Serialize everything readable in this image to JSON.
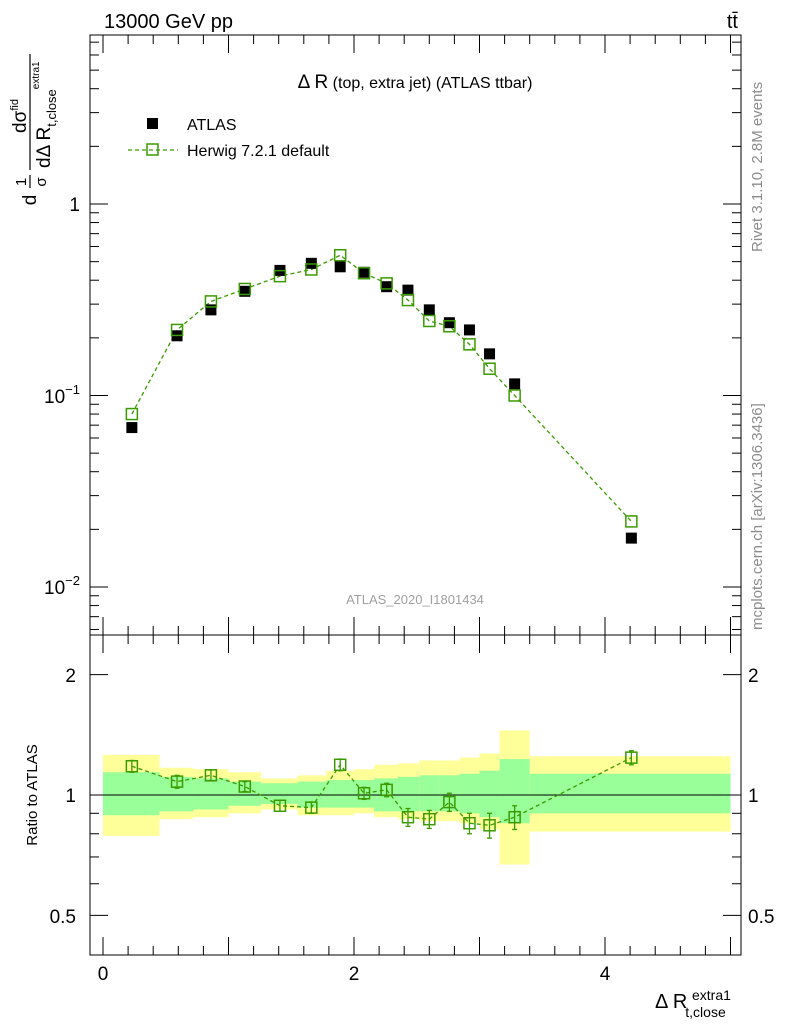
{
  "header": {
    "energy_label": "13000 GeV pp",
    "process_label": "tt̄"
  },
  "side_labels": {
    "rivet": "Rivet 3.1.10,  2.8M events",
    "source": "mcplots.cern.ch [arXiv:1306.3436]"
  },
  "main_plot": {
    "title_prefix": "Δ R",
    "title_rest": " (top, extra jet) (ATLAS ttbar)",
    "ylabel_numerator": "dσ",
    "ylabel_numerator_sup": "fid",
    "ylabel_denominator": "dΔ R",
    "ylabel_denominator_sub": "t,close",
    "ylabel_denominator_sup": "extra1",
    "ylabel_prefix_num": "1",
    "ylabel_prefix_den": "σ",
    "ylabel_d1": "d",
    "watermark": "ATLAS_2020_I1801434",
    "y_tick_1": "1",
    "y_tick_01_base": "10",
    "y_tick_01_exp": "−1",
    "y_tick_001_base": "10",
    "y_tick_001_exp": "−2"
  },
  "ratio_plot": {
    "ylabel": "Ratio to ATLAS",
    "y_ticks": [
      "0.5",
      "1",
      "2"
    ]
  },
  "x_axis": {
    "label_main": "Δ R",
    "label_sub": "t,close",
    "label_sup": "extra1",
    "ticks": [
      "0",
      "2",
      "4"
    ]
  },
  "legend": {
    "data_label": "ATLAS",
    "mc_label": "Herwig 7.2.1 default"
  },
  "colors": {
    "data": "#000000",
    "mc": "#3a9a00",
    "band_inner": "#99ff99",
    "band_outer": "#ffff99"
  },
  "chart_data": {
    "type": "scatter",
    "log_y": true,
    "xlim": [
      -0.2,
      5.1
    ],
    "ylim": [
      0.006,
      8
    ],
    "ratio_ylim": [
      0.4,
      2.5
    ],
    "x": [
      0.23,
      0.59,
      0.86,
      1.13,
      1.41,
      1.66,
      1.89,
      2.08,
      2.26,
      2.43,
      2.6,
      2.76,
      2.92,
      3.08,
      3.28,
      4.21
    ],
    "bin_edges": [
      0.0,
      0.45,
      0.72,
      1.0,
      1.26,
      1.55,
      1.78,
      2.0,
      2.16,
      2.35,
      2.52,
      2.68,
      2.84,
      3.0,
      3.16,
      3.4,
      5.0
    ],
    "series": [
      {
        "name": "ATLAS",
        "y": [
          0.068,
          0.205,
          0.28,
          0.35,
          0.45,
          0.49,
          0.47,
          0.44,
          0.37,
          0.355,
          0.28,
          0.24,
          0.22,
          0.165,
          0.115,
          0.018
        ]
      },
      {
        "name": "Herwig 7.2.1 default",
        "y": [
          0.08,
          0.22,
          0.31,
          0.36,
          0.42,
          0.455,
          0.54,
          0.435,
          0.385,
          0.315,
          0.245,
          0.23,
          0.185,
          0.138,
          0.1,
          0.022
        ],
        "ratio": [
          1.18,
          1.08,
          1.12,
          1.05,
          0.94,
          0.93,
          1.19,
          1.01,
          1.03,
          0.88,
          0.87,
          0.96,
          0.85,
          0.84,
          0.88,
          1.24
        ],
        "ratio_err": [
          0.04,
          0.04,
          0.035,
          0.03,
          0.03,
          0.03,
          0.04,
          0.035,
          0.04,
          0.045,
          0.045,
          0.05,
          0.05,
          0.06,
          0.06,
          0.05
        ]
      }
    ],
    "ratio_band_inner": [
      [
        0.89,
        1.14
      ],
      [
        0.91,
        1.11
      ],
      [
        0.92,
        1.1
      ],
      [
        0.94,
        1.08
      ],
      [
        0.95,
        1.07
      ],
      [
        0.93,
        1.08
      ],
      [
        0.93,
        1.09
      ],
      [
        0.93,
        1.09
      ],
      [
        0.91,
        1.1
      ],
      [
        0.91,
        1.11
      ],
      [
        0.91,
        1.12
      ],
      [
        0.91,
        1.12
      ],
      [
        0.9,
        1.13
      ],
      [
        0.88,
        1.15
      ],
      [
        0.85,
        1.23
      ],
      [
        0.9,
        1.13
      ]
    ],
    "ratio_band_outer": [
      [
        0.79,
        1.26
      ],
      [
        0.87,
        1.17
      ],
      [
        0.88,
        1.16
      ],
      [
        0.9,
        1.14
      ],
      [
        0.92,
        1.1
      ],
      [
        0.89,
        1.12
      ],
      [
        0.89,
        1.15
      ],
      [
        0.9,
        1.16
      ],
      [
        0.88,
        1.19
      ],
      [
        0.87,
        1.2
      ],
      [
        0.86,
        1.22
      ],
      [
        0.86,
        1.22
      ],
      [
        0.85,
        1.24
      ],
      [
        0.82,
        1.27
      ],
      [
        0.67,
        1.45
      ],
      [
        0.81,
        1.25
      ]
    ]
  }
}
